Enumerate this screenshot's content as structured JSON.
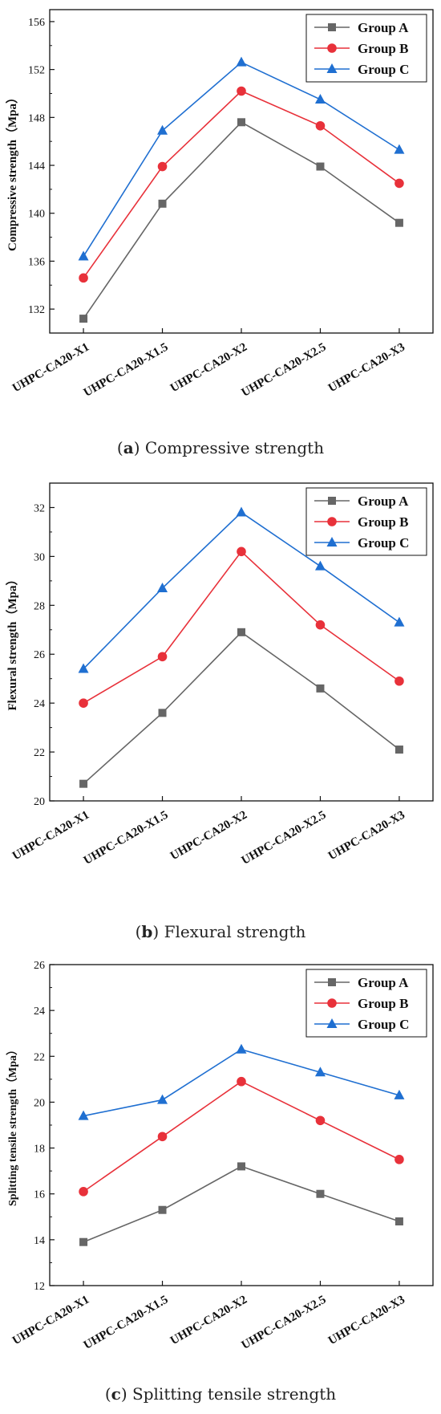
{
  "chart_data": [
    {
      "type": "line",
      "categories": [
        "UHPC-CA20-X1",
        "UHPC-CA20-X1.5",
        "UHPC-CA20-X2",
        "UHPC-CA20-X2.5",
        "UHPC-CA20-X3"
      ],
      "series": [
        {
          "name": "Group A",
          "values": [
            131.2,
            140.8,
            147.6,
            143.9,
            139.2
          ],
          "color": "#666666",
          "marker": "square"
        },
        {
          "name": "Group B",
          "values": [
            134.6,
            143.9,
            150.2,
            147.3,
            142.5
          ],
          "color": "#e8313a",
          "marker": "circle"
        },
        {
          "name": "Group C",
          "values": [
            136.4,
            146.9,
            152.6,
            149.5,
            145.3
          ],
          "color": "#1f6fd1",
          "marker": "triangle"
        }
      ],
      "ylabel": "Compressive strength（Mpa）",
      "ylim": [
        130,
        157
      ],
      "yticks": [
        132,
        136,
        140,
        144,
        148,
        152,
        156
      ],
      "legend": "top-right",
      "grid": false,
      "caption_letter": "a",
      "caption_text": " Compressive strength"
    },
    {
      "type": "line",
      "categories": [
        "UHPC-CA20-X1",
        "UHPC-CA20-X1.5",
        "UHPC-CA20-X2",
        "UHPC-CA20-X2.5",
        "UHPC-CA20-X3"
      ],
      "series": [
        {
          "name": "Group A",
          "values": [
            20.7,
            23.6,
            26.9,
            24.6,
            22.1
          ],
          "color": "#666666",
          "marker": "square"
        },
        {
          "name": "Group B",
          "values": [
            24.0,
            25.9,
            30.2,
            27.2,
            24.9
          ],
          "color": "#e8313a",
          "marker": "circle"
        },
        {
          "name": "Group C",
          "values": [
            25.4,
            28.7,
            31.8,
            29.6,
            27.3
          ],
          "color": "#1f6fd1",
          "marker": "triangle"
        }
      ],
      "ylabel": "Flexural strength（Mpa）",
      "ylim": [
        20,
        33
      ],
      "yticks": [
        20,
        22,
        24,
        26,
        28,
        30,
        32
      ],
      "legend": "top-right",
      "grid": false,
      "caption_letter": "b",
      "caption_text": " Flexural strength"
    },
    {
      "type": "line",
      "categories": [
        "UHPC-CA20-X1",
        "UHPC-CA20-X1.5",
        "UHPC-CA20-X2",
        "UHPC-CA20-X2.5",
        "UHPC-CA20-X3"
      ],
      "series": [
        {
          "name": "Group A",
          "values": [
            13.9,
            15.3,
            17.2,
            16.0,
            14.8
          ],
          "color": "#666666",
          "marker": "square"
        },
        {
          "name": "Group B",
          "values": [
            16.1,
            18.5,
            20.9,
            19.2,
            17.5
          ],
          "color": "#e8313a",
          "marker": "circle"
        },
        {
          "name": "Group C",
          "values": [
            19.4,
            20.1,
            22.3,
            21.3,
            20.3
          ],
          "color": "#1f6fd1",
          "marker": "triangle"
        }
      ],
      "ylabel": "Splitting tensile strength（Mpa）",
      "ylim": [
        12,
        26
      ],
      "yticks": [
        12,
        14,
        16,
        18,
        20,
        22,
        24,
        26
      ],
      "legend": "top-right",
      "grid": false,
      "caption_letter": "c",
      "caption_text": " Splitting tensile strength"
    }
  ]
}
